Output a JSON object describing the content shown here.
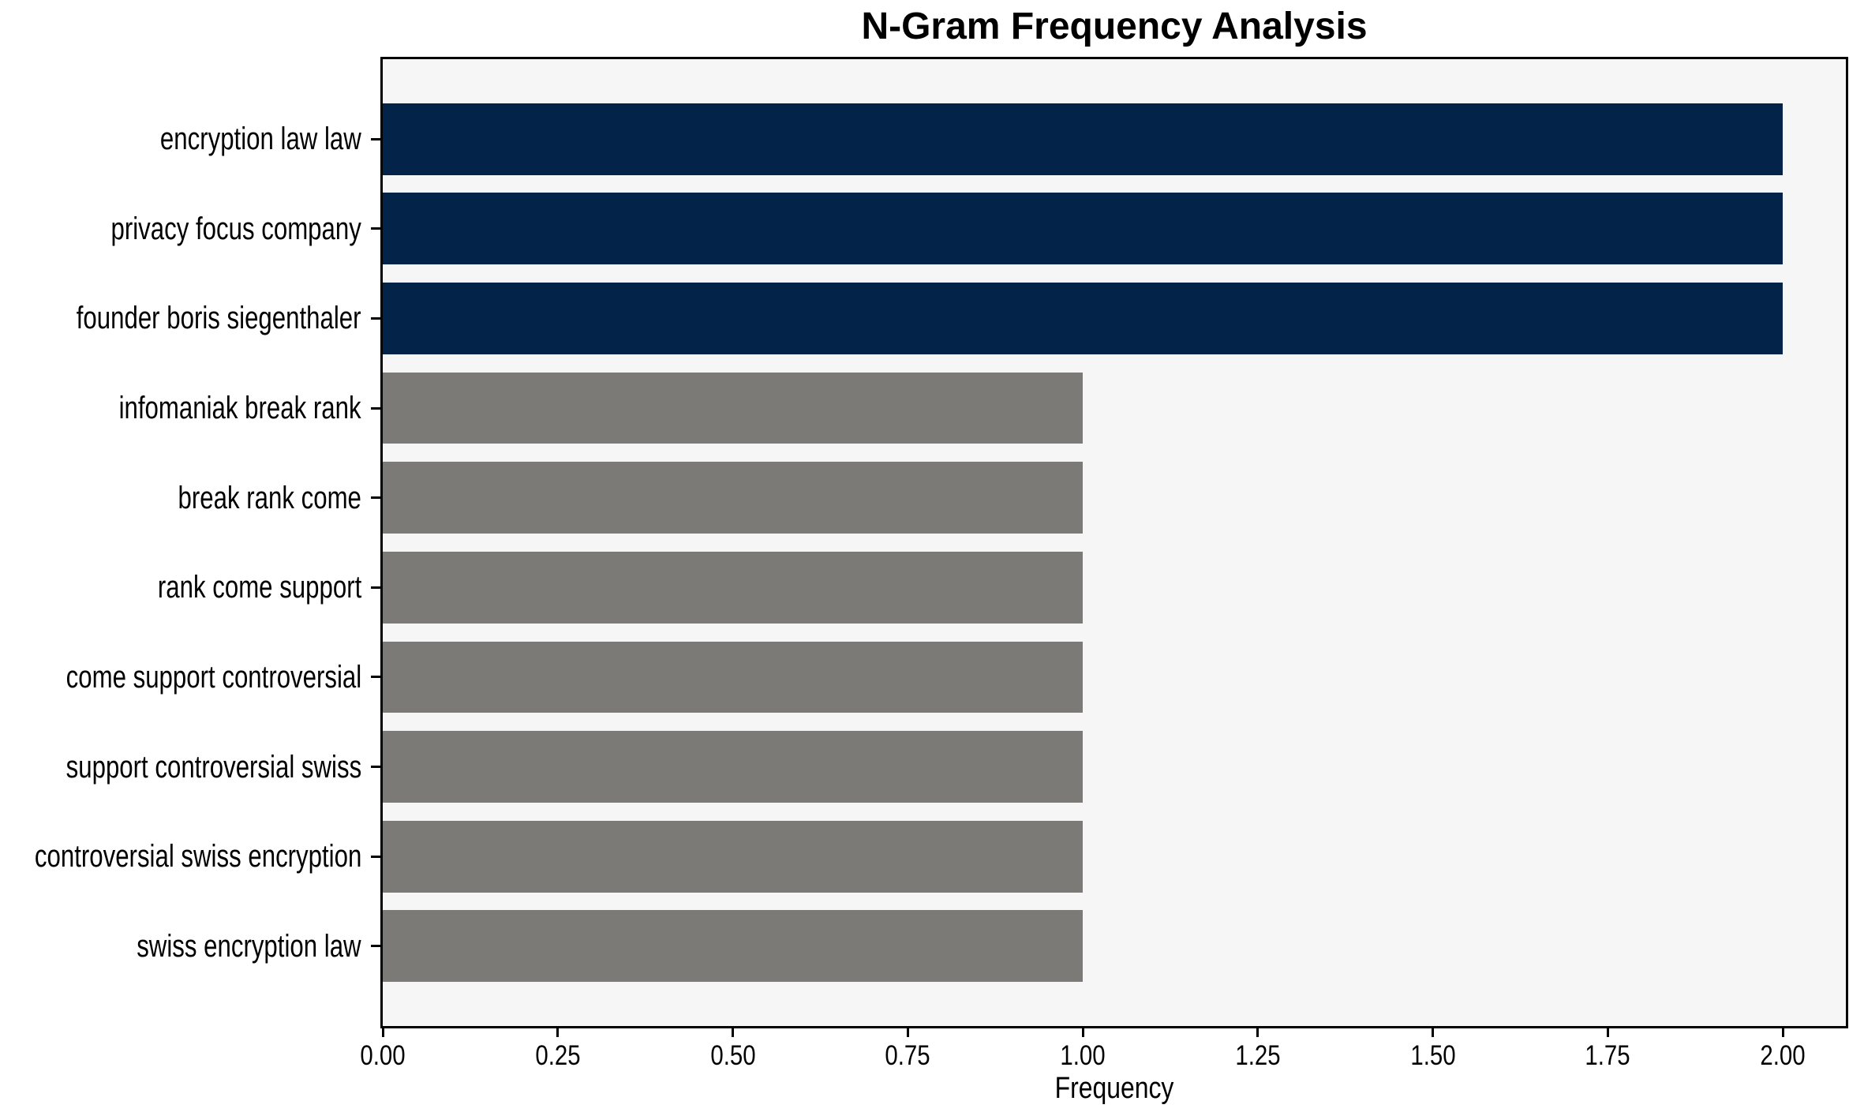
{
  "chart_data": {
    "type": "bar",
    "orientation": "horizontal",
    "title": "N-Gram Frequency Analysis",
    "xlabel": "Frequency",
    "ylabel": "",
    "categories": [
      "encryption law law",
      "privacy focus company",
      "founder boris siegenthaler",
      "infomaniak break rank",
      "break rank come",
      "rank come support",
      "come support controversial",
      "support controversial swiss",
      "controversial swiss encryption",
      "swiss encryption law"
    ],
    "values": [
      2,
      2,
      2,
      1,
      1,
      1,
      1,
      1,
      1,
      1
    ],
    "bar_colors": [
      "#032349",
      "#032349",
      "#032349",
      "#7b7a77",
      "#7b7a77",
      "#7b7a77",
      "#7b7a77",
      "#7b7a77",
      "#7b7a77",
      "#7b7a77"
    ],
    "xticks": [
      0,
      0.25,
      0.5,
      0.75,
      1.0,
      1.25,
      1.5,
      1.75,
      2.0
    ],
    "xtick_labels": [
      "0.00",
      "0.25",
      "0.50",
      "0.75",
      "1.00",
      "1.25",
      "1.50",
      "1.75",
      "2.00"
    ],
    "xlim": [
      0,
      2.09
    ],
    "grid": false,
    "legend": null,
    "colors": {
      "plot_background": "#f6f6f6",
      "figure_background": "#ffffff",
      "spine": "#000000",
      "text": "#000000"
    }
  }
}
